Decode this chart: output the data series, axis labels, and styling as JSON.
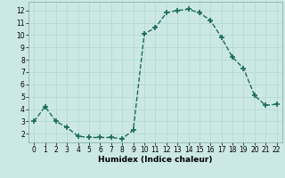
{
  "x": [
    0,
    1,
    2,
    3,
    4,
    5,
    6,
    7,
    8,
    9,
    10,
    11,
    12,
    13,
    14,
    15,
    16,
    17,
    18,
    19,
    20,
    21,
    22
  ],
  "y": [
    3.0,
    4.2,
    3.0,
    2.5,
    1.8,
    1.7,
    1.7,
    1.7,
    1.6,
    2.3,
    10.1,
    10.6,
    11.8,
    12.0,
    12.1,
    11.8,
    11.2,
    9.8,
    8.2,
    7.3,
    5.1,
    4.3,
    4.4
  ],
  "line_color": "#1a6b5a",
  "marker": "+",
  "marker_size": 4,
  "marker_lw": 1.2,
  "line_width": 1.0,
  "bg_color": "#cce8e4",
  "grid_color": "#b0d8d0",
  "xlabel": "Humidex (Indice chaleur)",
  "xlim": [
    -0.5,
    22.5
  ],
  "ylim": [
    1.3,
    12.7
  ],
  "yticks": [
    2,
    3,
    4,
    5,
    6,
    7,
    8,
    9,
    10,
    11,
    12
  ],
  "xticks": [
    0,
    1,
    2,
    3,
    4,
    5,
    6,
    7,
    8,
    9,
    10,
    11,
    12,
    13,
    14,
    15,
    16,
    17,
    18,
    19,
    20,
    21,
    22
  ],
  "label_fontsize": 6.5,
  "tick_fontsize": 5.5
}
